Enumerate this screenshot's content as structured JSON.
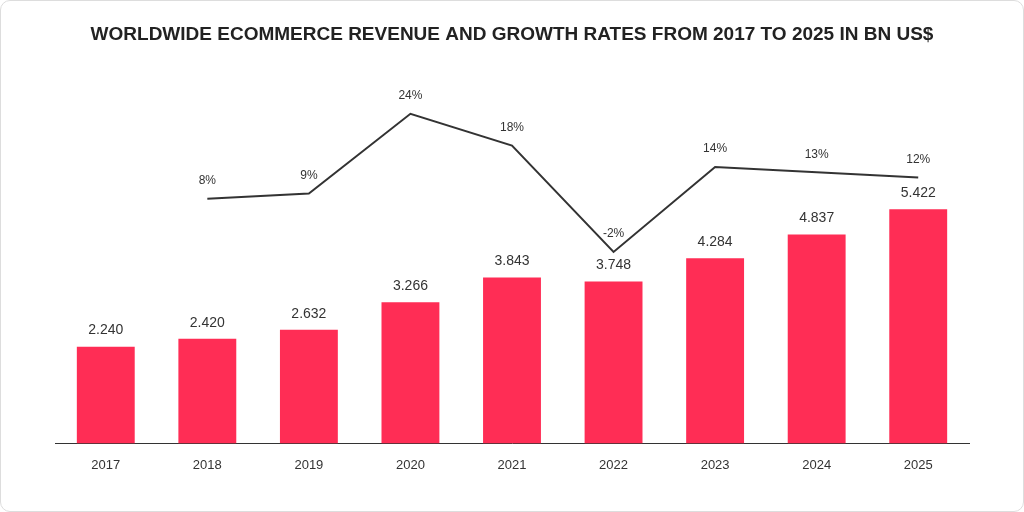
{
  "chart_data": {
    "type": "bar",
    "title": "WORLDWIDE ECOMMERCE REVENUE AND GROWTH RATES FROM 2017 TO 2025 IN BN US$",
    "categories": [
      "2017",
      "2018",
      "2019",
      "2020",
      "2021",
      "2022",
      "2023",
      "2024",
      "2025"
    ],
    "series": [
      {
        "type": "bar",
        "color": "#ff2d55",
        "values": [
          2.24,
          2.42,
          2.632,
          3.266,
          3.843,
          3.748,
          4.284,
          4.837,
          5.422
        ],
        "value_labels": [
          "2.240",
          "2.420",
          "2.632",
          "3.266",
          "3.843",
          "3.748",
          "4.284",
          "4.837",
          "5.422"
        ]
      },
      {
        "type": "line",
        "color": "#333333",
        "axis": "y2",
        "values": [
          null,
          8,
          9,
          24,
          18,
          -2,
          14,
          13,
          12
        ],
        "value_labels": [
          null,
          "8%",
          "9%",
          "24%",
          "18%",
          "-2%",
          "14%",
          "13%",
          "12%"
        ]
      }
    ],
    "ylim": [
      0,
      8
    ],
    "y2lim": [
      -38,
      27
    ],
    "grid": false,
    "data_labels": true,
    "tick_labels": "x"
  }
}
